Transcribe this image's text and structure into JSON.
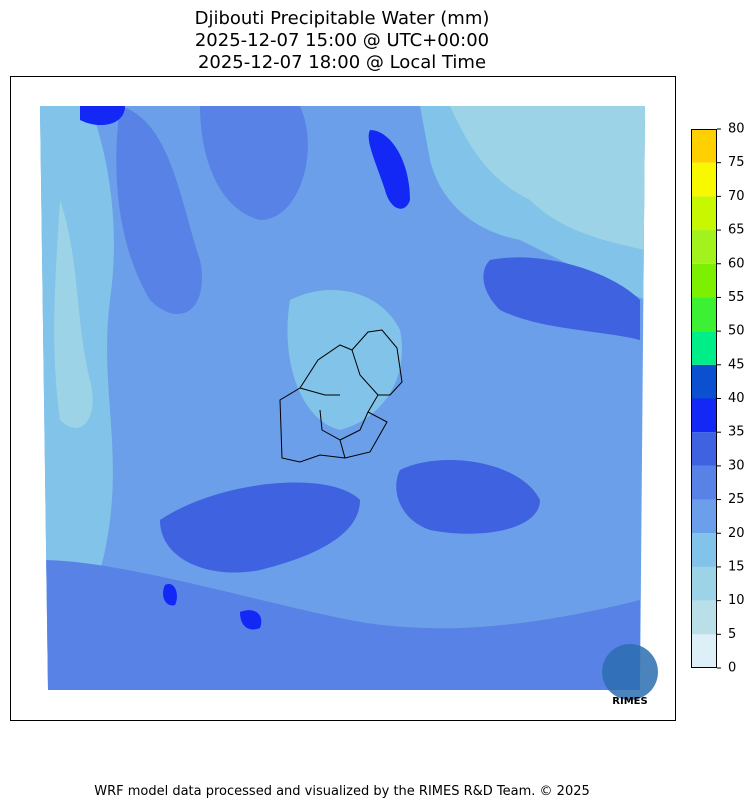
{
  "title_lines": [
    "Djibouti Precipitable Water (mm)",
    "2025-12-07 15:00 @ UTC+00:00",
    "2025-12-07 18:00 @ Local Time"
  ],
  "colorbar": {
    "bins": [
      0,
      5,
      10,
      15,
      20,
      25,
      30,
      35,
      40,
      45,
      50,
      55,
      60,
      65,
      70,
      75,
      80
    ],
    "colors": [
      "#ddeff7",
      "#b9dfe9",
      "#9dd3e6",
      "#82c3e9",
      "#6b9fe9",
      "#5882e6",
      "#3f62e0",
      "#1428f5",
      "#0a50d0",
      "#00ee88",
      "#3cf034",
      "#7cf000",
      "#a2f21e",
      "#c8f800",
      "#f8f800",
      "#ffd000"
    ]
  },
  "logo": "RIMES",
  "footer": "WRF model data processed and visualized by the RIMES R&D Team. © 2025"
}
